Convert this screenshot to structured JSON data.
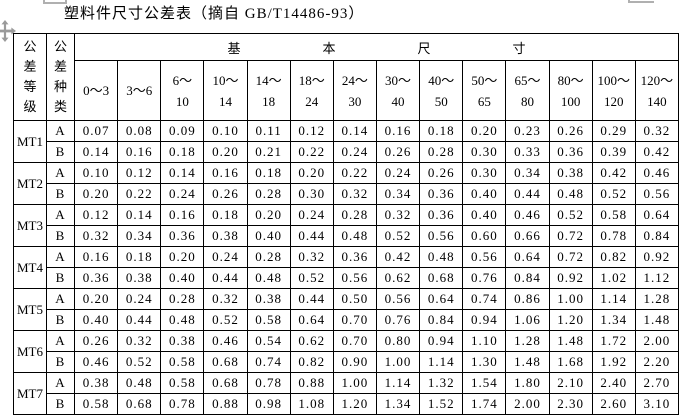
{
  "title": "塑料件尺寸公差表（摘自 GB/T14486-93）",
  "table": {
    "grade_header": "公\n差\n等\n级",
    "type_header": "公\n差\n种\n类",
    "group_header": "基本尺寸",
    "group_header_chars": [
      "基",
      "本",
      "尺",
      "寸"
    ],
    "size_ranges": [
      "0～3",
      "3～6",
      "6～\n10",
      "10～\n14",
      "14～\n18",
      "18～\n24",
      "24～\n30",
      "30～\n40",
      "40～\n50",
      "50～\n65",
      "65～\n80",
      "80～\n100",
      "100～\n120",
      "120～\n140"
    ],
    "type_labels": [
      "A",
      "B"
    ],
    "rows": [
      {
        "grade": "MT1",
        "a": [
          "0.07",
          "0.08",
          "0.09",
          "0.10",
          "0.11",
          "0.12",
          "0.14",
          "0.16",
          "0.18",
          "0.20",
          "0.23",
          "0.26",
          "0.29",
          "0.32"
        ],
        "b": [
          "0.14",
          "0.16",
          "0.18",
          "0.20",
          "0.21",
          "0.22",
          "0.24",
          "0.26",
          "0.28",
          "0.30",
          "0.33",
          "0.36",
          "0.39",
          "0.42"
        ]
      },
      {
        "grade": "MT2",
        "a": [
          "0.10",
          "0.12",
          "0.14",
          "0.16",
          "0.18",
          "0.20",
          "0.22",
          "0.24",
          "0.26",
          "0.30",
          "0.34",
          "0.38",
          "0.42",
          "0.46"
        ],
        "b": [
          "0.20",
          "0.22",
          "0.24",
          "0.26",
          "0.28",
          "0.30",
          "0.32",
          "0.34",
          "0.36",
          "0.40",
          "0.44",
          "0.48",
          "0.52",
          "0.56"
        ]
      },
      {
        "grade": "MT3",
        "a": [
          "0.12",
          "0.14",
          "0.16",
          "0.18",
          "0.20",
          "0.24",
          "0.28",
          "0.32",
          "0.36",
          "0.40",
          "0.46",
          "0.52",
          "0.58",
          "0.64"
        ],
        "b": [
          "0.32",
          "0.34",
          "0.36",
          "0.38",
          "0.40",
          "0.44",
          "0.48",
          "0.52",
          "0.56",
          "0.60",
          "0.66",
          "0.72",
          "0.78",
          "0.84"
        ]
      },
      {
        "grade": "MT4",
        "a": [
          "0.16",
          "0.18",
          "0.20",
          "0.24",
          "0.28",
          "0.32",
          "0.36",
          "0.42",
          "0.48",
          "0.56",
          "0.64",
          "0.72",
          "0.82",
          "0.92"
        ],
        "b": [
          "0.36",
          "0.38",
          "0.40",
          "0.44",
          "0.48",
          "0.52",
          "0.56",
          "0.62",
          "0.68",
          "0.76",
          "0.84",
          "0.92",
          "1.02",
          "1.12"
        ]
      },
      {
        "grade": "MT5",
        "a": [
          "0.20",
          "0.24",
          "0.28",
          "0.32",
          "0.38",
          "0.44",
          "0.50",
          "0.56",
          "0.64",
          "0.74",
          "0.86",
          "1.00",
          "1.14",
          "1.28"
        ],
        "b": [
          "0.40",
          "0.44",
          "0.48",
          "0.52",
          "0.58",
          "0.64",
          "0.70",
          "0.76",
          "0.84",
          "0.94",
          "1.06",
          "1.20",
          "1.34",
          "1.48"
        ]
      },
      {
        "grade": "MT6",
        "a": [
          "0.26",
          "0.32",
          "0.38",
          "0.46",
          "0.54",
          "0.62",
          "0.70",
          "0.80",
          "0.94",
          "1.10",
          "1.28",
          "1.48",
          "1.72",
          "2.00"
        ],
        "b": [
          "0.46",
          "0.52",
          "0.58",
          "0.68",
          "0.74",
          "0.82",
          "0.90",
          "1.00",
          "1.14",
          "1.30",
          "1.48",
          "1.68",
          "1.92",
          "2.20"
        ]
      },
      {
        "grade": "MT7",
        "a": [
          "0.38",
          "0.48",
          "0.58",
          "0.68",
          "0.78",
          "0.88",
          "1.00",
          "1.14",
          "1.32",
          "1.54",
          "1.80",
          "2.10",
          "2.40",
          "2.70"
        ],
        "b": [
          "0.58",
          "0.68",
          "0.78",
          "0.88",
          "0.98",
          "1.08",
          "1.20",
          "1.34",
          "1.52",
          "1.74",
          "2.00",
          "2.30",
          "2.60",
          "3.10"
        ]
      }
    ]
  },
  "colors": {
    "border": "#000000",
    "text": "#000000",
    "artifact_gray": "#b0b0b0",
    "handle_gray": "#9a9a9a",
    "background": "#ffffff"
  },
  "icons": {
    "move_handle": "four-direction-move-arrows"
  }
}
